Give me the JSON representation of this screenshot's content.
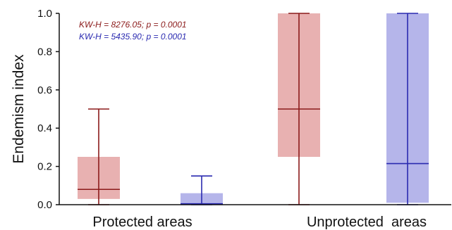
{
  "chart_data": {
    "type": "box",
    "ylabel": "Endemism index",
    "xlabel": "",
    "ylim": [
      0,
      1
    ],
    "yticks": [
      "0.0",
      "0.2",
      "0.4",
      "0.6",
      "0.8",
      "1.0"
    ],
    "categories": [
      "Protected areas",
      "Unprotected  areas"
    ],
    "annotations": [
      {
        "text": "KW-H = 8276.05; p = 0.0001",
        "color": "#8b1a1a"
      },
      {
        "text": "KW-H = 5435.90; p = 0.0001",
        "color": "#2a2ab0"
      }
    ],
    "series": [
      {
        "color": "#8b1a1a",
        "fill": "#e8b1b1",
        "boxes": [
          {
            "min": 0.0,
            "q1": 0.03,
            "median": 0.08,
            "q3": 0.25,
            "max": 0.5
          },
          {
            "min": 0.0,
            "q1": 0.25,
            "median": 0.5,
            "q3": 1.0,
            "max": 1.0
          }
        ]
      },
      {
        "color": "#2a2ab0",
        "fill": "#b5b5ea",
        "boxes": [
          {
            "min": 0.0,
            "q1": 0.0,
            "median": 0.005,
            "q3": 0.06,
            "max": 0.15
          },
          {
            "min": 0.0,
            "q1": 0.01,
            "median": 0.215,
            "q3": 1.0,
            "max": 1.0
          }
        ]
      }
    ]
  }
}
